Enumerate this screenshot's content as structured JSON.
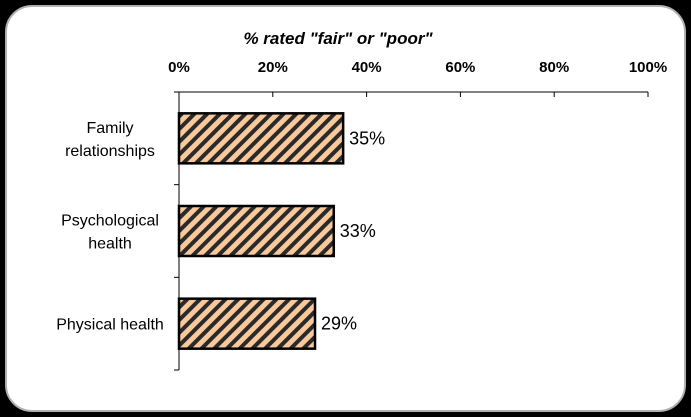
{
  "chart_data": {
    "type": "bar",
    "orientation": "horizontal",
    "title": "% rated \"fair\" or \"poor\"",
    "xlim": [
      0,
      100
    ],
    "x_ticks": [
      0,
      20,
      40,
      60,
      80,
      100
    ],
    "x_tick_labels": [
      "0%",
      "20%",
      "40%",
      "60%",
      "80%",
      "100%"
    ],
    "axis_position": "top",
    "grid": false,
    "legend": "none",
    "categories": [
      [
        "Family",
        "relationships"
      ],
      [
        "Psychological",
        "health"
      ],
      [
        "Physical health"
      ]
    ],
    "values": [
      35,
      33,
      29
    ],
    "value_labels": [
      "35%",
      "33%",
      "29%"
    ],
    "bar_fill": "#f9c89b",
    "bar_hatch": "#2a2a2a",
    "bar_stroke": "#000000",
    "frame_background": "#ffffff",
    "frame_border": "#b0b0b0",
    "page_background": "#000000"
  }
}
